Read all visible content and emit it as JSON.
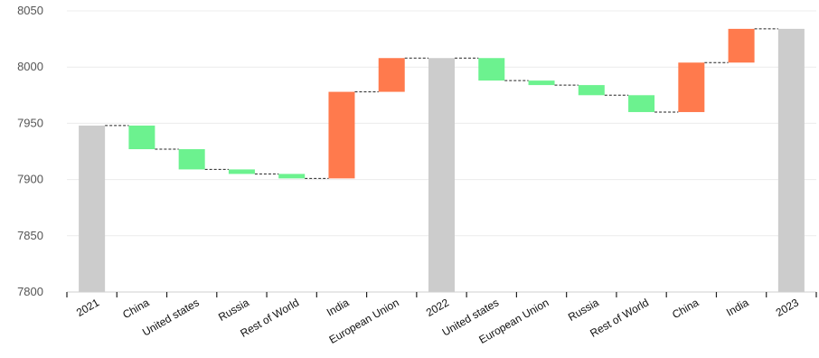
{
  "chart_data": {
    "type": "waterfall",
    "title": "",
    "xlabel": "",
    "ylabel": "",
    "ylim": [
      7800,
      8050
    ],
    "yticks": [
      7800,
      7850,
      7900,
      7950,
      8000,
      8050
    ],
    "grid": true,
    "legend": "none",
    "colors": {
      "total": "#cccccc",
      "decrease": "#6cf28f",
      "increase": "#ff7a4d",
      "connector": "#222222",
      "grid": "#ececec"
    },
    "bars": [
      {
        "label": "2021",
        "kind": "total",
        "start": 7800,
        "end": 7948
      },
      {
        "label": "China",
        "kind": "decrease",
        "start": 7948,
        "end": 7927
      },
      {
        "label": "United states",
        "kind": "decrease",
        "start": 7927,
        "end": 7909
      },
      {
        "label": "Russia",
        "kind": "decrease",
        "start": 7909,
        "end": 7905
      },
      {
        "label": "Rest of World",
        "kind": "decrease",
        "start": 7905,
        "end": 7901
      },
      {
        "label": "India",
        "kind": "increase",
        "start": 7901,
        "end": 7978
      },
      {
        "label": "European Union",
        "kind": "increase",
        "start": 7978,
        "end": 8008
      },
      {
        "label": "2022",
        "kind": "total",
        "start": 7800,
        "end": 8008
      },
      {
        "label": "United states",
        "kind": "decrease",
        "start": 8008,
        "end": 7988
      },
      {
        "label": "European Union",
        "kind": "decrease",
        "start": 7988,
        "end": 7984
      },
      {
        "label": "Russia",
        "kind": "decrease",
        "start": 7984,
        "end": 7975
      },
      {
        "label": "Rest of World",
        "kind": "decrease",
        "start": 7975,
        "end": 7960
      },
      {
        "label": "China",
        "kind": "increase",
        "start": 7960,
        "end": 8004
      },
      {
        "label": "India",
        "kind": "increase",
        "start": 8004,
        "end": 8034
      },
      {
        "label": "2023",
        "kind": "total",
        "start": 7800,
        "end": 8034
      }
    ]
  }
}
